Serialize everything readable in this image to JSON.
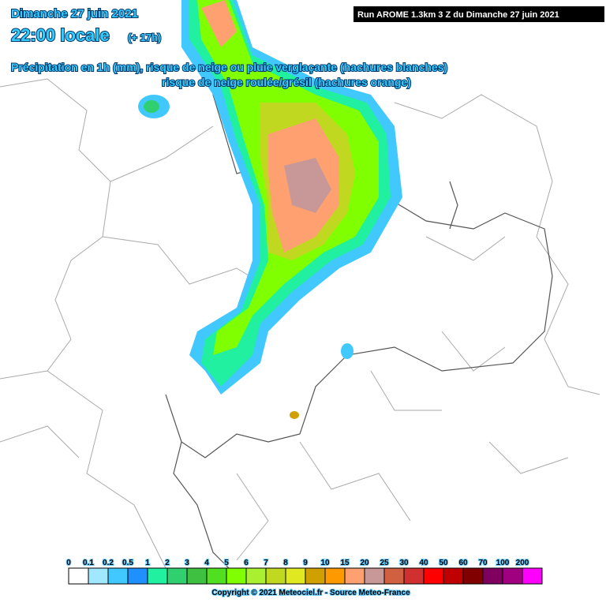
{
  "header": {
    "date": "Dimanche 27 juin 2021",
    "time": "22:00 locale",
    "lead": "(+ 17h)",
    "line1": "Précipitation en 1h (mm), risque de neige ou pluie verglaçante (hachures blanches)",
    "line2": "risque de neige roulée/grésil (hachures orange)",
    "run": "Run AROME 1.3km 3 Z du Dimanche 27 juin 2021"
  },
  "legend": {
    "items": [
      {
        "label": "0",
        "color": "#ffffff"
      },
      {
        "label": "0.1",
        "color": "#a0e8ff"
      },
      {
        "label": "0.2",
        "color": "#40c8ff"
      },
      {
        "label": "0.5",
        "color": "#1e90ff"
      },
      {
        "label": "1",
        "color": "#20f0a0"
      },
      {
        "label": "2",
        "color": "#30d070"
      },
      {
        "label": "3",
        "color": "#40c040"
      },
      {
        "label": "4",
        "color": "#50e020"
      },
      {
        "label": "5",
        "color": "#80ff00"
      },
      {
        "label": "6",
        "color": "#a8f030"
      },
      {
        "label": "7",
        "color": "#c0d820"
      },
      {
        "label": "8",
        "color": "#e0e820"
      },
      {
        "label": "9",
        "color": "#d0a000"
      },
      {
        "label": "10",
        "color": "#ff9900"
      },
      {
        "label": "15",
        "color": "#ffa070"
      },
      {
        "label": "20",
        "color": "#c89898"
      },
      {
        "label": "25",
        "color": "#d06040"
      },
      {
        "label": "30",
        "color": "#d03030"
      },
      {
        "label": "40",
        "color": "#ff0000"
      },
      {
        "label": "50",
        "color": "#c00000"
      },
      {
        "label": "60",
        "color": "#800000"
      },
      {
        "label": "70",
        "color": "#800060"
      },
      {
        "label": "100",
        "color": "#a00080"
      },
      {
        "label": "200",
        "color": "#ff00ff"
      }
    ]
  },
  "footer": {
    "copyright": "Copyright © 2021 Meteociel.fr - Source Meteo-France"
  }
}
